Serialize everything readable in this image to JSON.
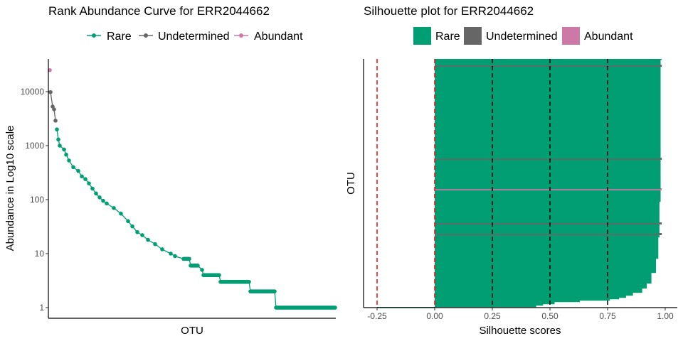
{
  "colors": {
    "rare": "#009E73",
    "undetermined": "#666666",
    "abundant": "#CC79A7",
    "ref_line": "#FF0000",
    "grid_line": "#000000"
  },
  "chart_data": [
    {
      "type": "line",
      "title": "Rank Abundance Curve for  ERR2044662",
      "xlabel": "OTU",
      "ylabel": "Abundance in Log10 scale",
      "yscale": "log10",
      "ylim": [
        0.9,
        40000
      ],
      "xlim": [
        1,
        403
      ],
      "yticks": [
        "1",
        "10",
        "100",
        "1000",
        "10000"
      ],
      "ytick_values": [
        1,
        10,
        100,
        1000,
        10000
      ],
      "legend_position": "top",
      "legend": [
        "Rare",
        "Undetermined",
        "Abundant"
      ],
      "series": [
        {
          "name": "Abundant",
          "points": [
            [
              2,
              25000
            ]
          ]
        },
        {
          "name": "Undetermined",
          "points": [
            [
              3,
              9800
            ],
            [
              6,
              5300
            ],
            [
              8,
              4700
            ],
            [
              10,
              2900
            ]
          ]
        },
        {
          "name": "Rare",
          "points": [
            [
              12,
              2000
            ],
            [
              14,
              1300
            ],
            [
              16,
              1000
            ],
            [
              22,
              850
            ],
            [
              25,
              680
            ],
            [
              29,
              530
            ],
            [
              35,
              400
            ],
            [
              42,
              340
            ],
            [
              47,
              270
            ],
            [
              52,
              240
            ],
            [
              57,
              200
            ],
            [
              62,
              160
            ],
            [
              67,
              130
            ],
            [
              72,
              110
            ],
            [
              77,
              95
            ],
            [
              82,
              85
            ],
            [
              92,
              70
            ],
            [
              102,
              55
            ],
            [
              112,
              40
            ],
            [
              118,
              32
            ],
            [
              125,
              25
            ],
            [
              132,
              22
            ],
            [
              140,
              18
            ],
            [
              150,
              15
            ],
            [
              160,
              12
            ],
            [
              172,
              10
            ],
            [
              178,
              9
            ],
            [
              190,
              8
            ],
            [
              198,
              8
            ],
            [
              200,
              6
            ],
            [
              210,
              6
            ],
            [
              216,
              5
            ],
            [
              218,
              4
            ],
            [
              240,
              4
            ],
            [
              242,
              3
            ],
            [
              282,
              3
            ],
            [
              284,
              2
            ],
            [
              318,
              2
            ],
            [
              320,
              1
            ],
            [
              403,
              1
            ]
          ]
        }
      ]
    },
    {
      "type": "bar",
      "orientation": "horizontal",
      "title": "Silhouette plot for ERR2044662",
      "xlabel": "Silhouette scores",
      "ylabel": "OTU",
      "xlim": [
        -0.3,
        1.03
      ],
      "xticks": [
        "-0.25",
        "0.00",
        "0.25",
        "0.50",
        "0.75",
        "1.00"
      ],
      "xtick_values": [
        -0.25,
        0,
        0.25,
        0.5,
        0.75,
        1.0
      ],
      "ref_lines_red": [
        -0.25,
        0
      ],
      "ref_lines_black": [
        0.25,
        0.5,
        0.75
      ],
      "legend_position": "top",
      "legend": [
        "Rare",
        "Undetermined",
        "Abundant"
      ],
      "n_otus": 350,
      "rare_profile": [
        [
          1,
          -0.25
        ],
        [
          2,
          0.44
        ],
        [
          4,
          0.47
        ],
        [
          6,
          0.52
        ],
        [
          9,
          0.63
        ],
        [
          11,
          0.76
        ],
        [
          13,
          0.8
        ],
        [
          15,
          0.83
        ],
        [
          18,
          0.86
        ],
        [
          22,
          0.9
        ],
        [
          28,
          0.92
        ],
        [
          35,
          0.94
        ],
        [
          50,
          0.96
        ],
        [
          70,
          0.97
        ],
        [
          100,
          0.975
        ],
        [
          150,
          0.98
        ],
        [
          350,
          0.985
        ]
      ],
      "undetermined_otus": [
        104,
        119,
        210,
        341
      ],
      "abundant_otus": [
        167
      ],
      "highlight_score": 0.985
    }
  ]
}
